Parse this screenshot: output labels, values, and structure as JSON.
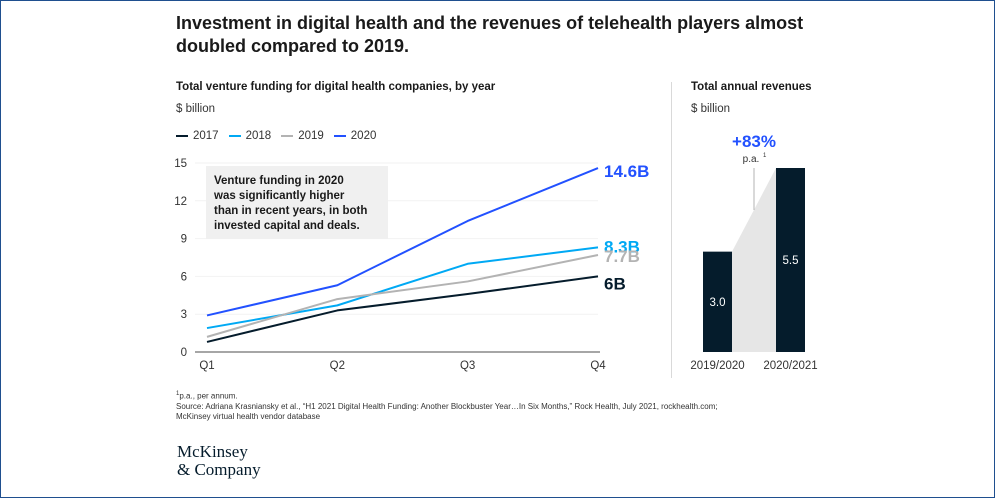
{
  "headline": "Investment in digital health and the revenues of telehealth players almost doubled compared to 2019.",
  "footnote_marker": "1",
  "footnote": "p.a., per annum.",
  "source": "Source: Adriana Krasniansky et al., “H1 2021 Digital Health Funding: Another Blockbuster Year…In Six Months,” Rock Health, July 2021, rockhealth.com;",
  "source_line2": "McKinsey virtual health vendor database",
  "logo_line1": "McKinsey",
  "logo_line2": "& Company",
  "callout_lines": [
    "Venture funding in 2020",
    "was significantly higher",
    "than in recent years, in both",
    "invested capital and deals."
  ],
  "colors": {
    "2017": "#051c2c",
    "2018": "#00a9f4",
    "2019": "#b3b3b3",
    "2020": "#2251ff",
    "bar": "#051c2c",
    "growth": "#2251ff"
  },
  "chart_data": [
    {
      "type": "line",
      "title": "Total venture funding for digital health companies, by year",
      "unit": "$ billion",
      "categories": [
        "Q1",
        "Q2",
        "Q3",
        "Q4"
      ],
      "yticks": [
        "0",
        "3",
        "6",
        "9",
        "12",
        "15"
      ],
      "ylim": [
        0,
        15
      ],
      "series": [
        {
          "name": "2017",
          "values": [
            0.8,
            3.3,
            4.6,
            6.0
          ],
          "end_label": "6B"
        },
        {
          "name": "2018",
          "values": [
            1.9,
            3.7,
            7.0,
            8.3
          ],
          "end_label": "8.3B"
        },
        {
          "name": "2019",
          "values": [
            1.2,
            4.2,
            5.6,
            7.7
          ],
          "end_label": "7.7B"
        },
        {
          "name": "2020",
          "values": [
            2.9,
            5.3,
            10.4,
            14.6
          ],
          "end_label": "14.6B"
        }
      ]
    },
    {
      "type": "bar",
      "title": "Total annual revenues",
      "unit": "$ billion",
      "categories": [
        "2019/2020",
        "2020/2021"
      ],
      "values": [
        3.0,
        5.5
      ],
      "value_labels": [
        "3.0",
        "5.5"
      ],
      "growth_label": "+83%",
      "growth_note": "p.a.",
      "growth_note_marker": "1"
    }
  ]
}
